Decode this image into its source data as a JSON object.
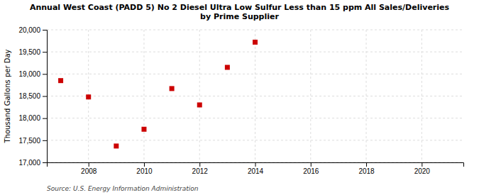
{
  "chart_data": {
    "type": "scatter",
    "title": "Annual West Coast (PADD 5) No 2 Diesel Ultra Low Sulfur Less than 15 ppm All Sales/Deliveries\nby Prime Supplier",
    "ylabel": "Thousand Gallons per Day",
    "annotations": [
      "Source: U.S. Energy Information Administration"
    ],
    "x": [
      2007,
      2008,
      2009,
      2010,
      2011,
      2012,
      2013,
      2014
    ],
    "values": [
      18850,
      18480,
      17370,
      17750,
      18670,
      18300,
      19150,
      19720
    ],
    "color": "#cc0000",
    "marker": "square",
    "xlim": [
      2006.5,
      2021.5
    ],
    "ylim": [
      17000,
      20000
    ],
    "xticks": [
      2008,
      2010,
      2012,
      2014,
      2016,
      2018,
      2020
    ],
    "yticks": [
      {
        "value": 17000,
        "label": "17,000"
      },
      {
        "value": 17500,
        "label": "17,500"
      },
      {
        "value": 18000,
        "label": "18,000"
      },
      {
        "value": 18500,
        "label": "18,500"
      },
      {
        "value": 19000,
        "label": "19,000"
      },
      {
        "value": 19500,
        "label": "19,500"
      },
      {
        "value": 20000,
        "label": "20,000"
      }
    ],
    "grid": true
  }
}
